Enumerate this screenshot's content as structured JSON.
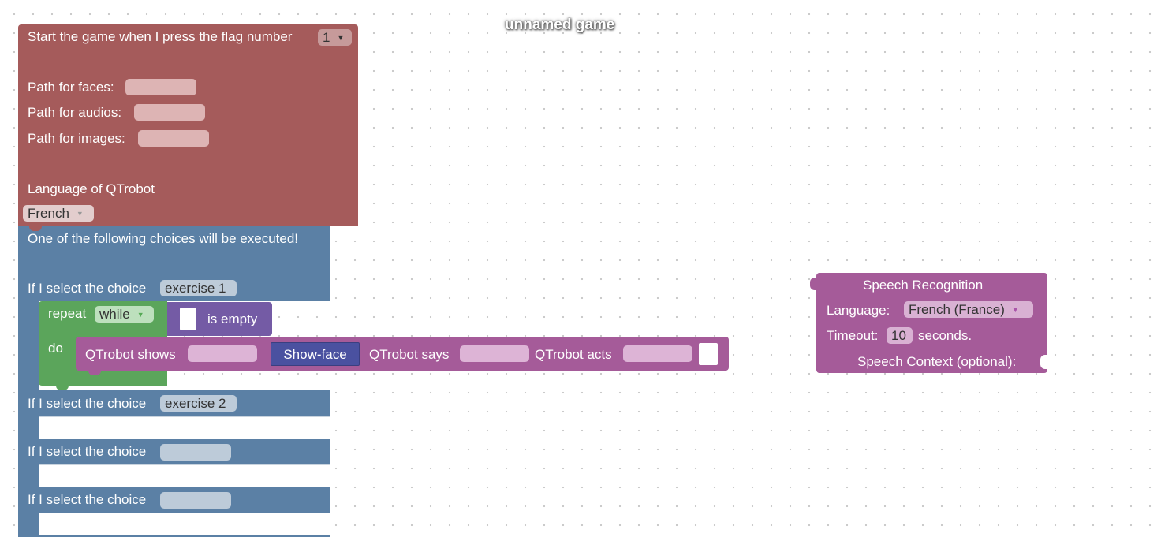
{
  "page": {
    "title": "unnamed game"
  },
  "colors": {
    "start_block": "#a55b5b",
    "choice_block": "#5b80a5",
    "loop_block": "#5ba55b",
    "list_block": "#745ba5",
    "robot_block": "#a55b99",
    "face_button": "#4a51a0"
  },
  "start_block": {
    "flag_label": "Start the game when I press the flag number",
    "flag_value": "1",
    "faces_label": "Path for faces:",
    "faces_value": "",
    "audios_label": "Path for audios:",
    "audios_value": "",
    "images_label": "Path for images:",
    "images_value": "",
    "language_label": "Language of QTrobot",
    "language_value": "French"
  },
  "choice_block": {
    "header": "One of the following choices will be executed!",
    "choices": [
      {
        "label": "If I select the choice",
        "value": "exercise 1"
      },
      {
        "label": "If I select the choice",
        "value": "exercise 2"
      },
      {
        "label": "If I select the choice",
        "value": ""
      },
      {
        "label": "If I select the choice",
        "value": ""
      }
    ]
  },
  "repeat_block": {
    "repeat_label": "repeat",
    "mode_value": "while",
    "do_label": "do",
    "condition_label": "is empty"
  },
  "robot_block": {
    "shows_label": "QTrobot shows",
    "shows_value": "",
    "face_button_label": "Show-face",
    "says_label": "QTrobot says",
    "says_value": "",
    "acts_label": "QTrobot acts",
    "acts_value": ""
  },
  "speech_block": {
    "title": "Speech Recognition",
    "language_label": "Language:",
    "language_value": "French (France)",
    "timeout_label": "Timeout:",
    "timeout_value": "10",
    "timeout_unit": "seconds.",
    "context_label": "Speech Context (optional):"
  }
}
